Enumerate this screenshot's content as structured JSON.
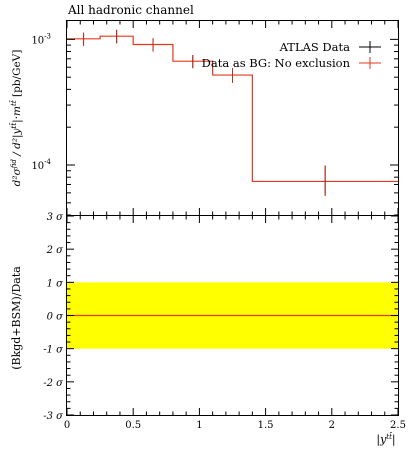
{
  "chart_data": [
    {
      "type": "line",
      "panel": "main",
      "title": "All hadronic channel",
      "ylabel": "d²σ^fid / d²|y^tt̄|·m^tt̄ [pb/GeV]",
      "xlabel": "",
      "yscale": "log",
      "ylim": [
        4e-05,
        0.0014
      ],
      "xlim": [
        0,
        2.5
      ],
      "y_tick_labels": [
        "10^{-3}",
        "10^{-4}"
      ],
      "legend": {
        "placement": "top-right",
        "entries": [
          "ATLAS Data",
          "Data as BG: No exclusion"
        ]
      },
      "series": [
        {
          "name": "ATLAS Data",
          "color": "#000000",
          "points": [
            {
              "x": 0.125,
              "y": 0.00101,
              "yerr": 0.00012,
              "xlo": 0.0,
              "xhi": 0.25
            },
            {
              "x": 0.375,
              "y": 0.00106,
              "yerr": 0.00013,
              "xlo": 0.25,
              "xhi": 0.5
            },
            {
              "x": 0.65,
              "y": 0.00091,
              "yerr": 0.00011,
              "xlo": 0.5,
              "xhi": 0.8
            },
            {
              "x": 0.95,
              "y": 0.00067,
              "yerr": 8e-05,
              "xlo": 0.8,
              "xhi": 1.1
            },
            {
              "x": 1.25,
              "y": 0.00052,
              "yerr": 7e-05,
              "xlo": 1.1,
              "xhi": 1.4
            },
            {
              "x": 1.95,
              "y": 7.4e-05,
              "yerr_lo": 1.7e-05,
              "yerr_hi": 2.5e-05,
              "xlo": 1.4,
              "xhi": 2.5
            }
          ]
        },
        {
          "name": "Data as BG: No exclusion",
          "color": "#e8371f",
          "bins": [
            {
              "xlo": 0.0,
              "xhi": 0.25,
              "y": 0.00101
            },
            {
              "xlo": 0.25,
              "xhi": 0.5,
              "y": 0.00106
            },
            {
              "xlo": 0.5,
              "xhi": 0.8,
              "y": 0.00091
            },
            {
              "xlo": 0.8,
              "xhi": 1.1,
              "y": 0.00067
            },
            {
              "xlo": 1.1,
              "xhi": 1.4,
              "y": 0.00052
            },
            {
              "xlo": 1.4,
              "xhi": 2.5,
              "y": 7.4e-05
            }
          ]
        }
      ]
    },
    {
      "type": "line",
      "panel": "ratio",
      "ylabel": "(Bkgd+BSM)/Data",
      "xlabel": "|y^tt̄|",
      "ylim": [
        -3,
        3
      ],
      "xlim": [
        0,
        2.5
      ],
      "y_tick_labels": [
        "3 σ",
        "2 σ",
        "1 σ",
        "0 σ",
        "-1 σ",
        "-2 σ",
        "-3 σ"
      ],
      "x_tick_labels": [
        "0",
        "0.5",
        "1",
        "1.5",
        "2",
        "2.5"
      ],
      "band": {
        "lo": -1,
        "hi": 1,
        "color": "#ffff00"
      },
      "series": [
        {
          "name": "",
          "color": "#e8371f",
          "values": [
            {
              "x": 0,
              "y": 0
            },
            {
              "x": 2.5,
              "y": 0
            }
          ]
        }
      ]
    }
  ]
}
